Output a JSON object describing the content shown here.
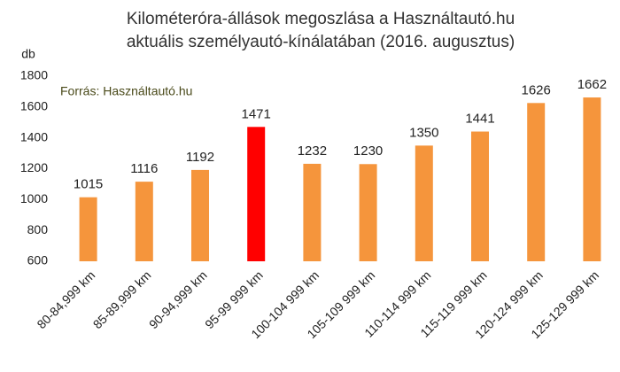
{
  "chart_data": {
    "type": "bar",
    "title": [
      "Kilométeróra-állások megoszlása a Használtautó.hu",
      "aktuális személyautó-kínálatában (2016. augusztus)"
    ],
    "y_label": "db",
    "annotation": "Forrás: Használtautó.hu",
    "categories": [
      "80-84,999 km",
      "85-89,999 km",
      "90-94,999 km",
      "95-99 999 km",
      "100-104 999 km",
      "105-109 999 km",
      "110-114 999 km",
      "115-119 999 km",
      "120-124 999 km",
      "125-129 999 km"
    ],
    "values": [
      1015,
      1116,
      1192,
      1471,
      1232,
      1230,
      1350,
      1441,
      1626,
      1662
    ],
    "colors": [
      "#f5953c",
      "#f5953c",
      "#f5953c",
      "#ff0000",
      "#f5953c",
      "#f5953c",
      "#f5953c",
      "#f5953c",
      "#f5953c",
      "#f5953c"
    ],
    "ylim": [
      600,
      1800
    ],
    "yticks": [
      600,
      800,
      1000,
      1200,
      1400,
      1600,
      1800
    ],
    "grid": false
  }
}
